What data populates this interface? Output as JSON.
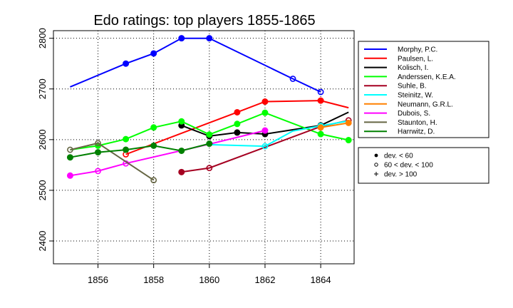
{
  "chart_data": {
    "type": "line",
    "title": "Edo ratings: top players 1855-1865",
    "xlabel": "",
    "ylabel": "",
    "xlim": [
      1854.4,
      1865.2
    ],
    "ylim": [
      2355,
      2815
    ],
    "xticks": [
      1856,
      1858,
      1860,
      1862,
      1864
    ],
    "yticks": [
      2400,
      2500,
      2600,
      2700,
      2800
    ],
    "xtick_labels": [
      "1856",
      "1858",
      "1860",
      "1862",
      "1864"
    ],
    "ytick_labels": [
      "2400",
      "2500",
      "2600",
      "2700",
      "2800"
    ],
    "grid": "dotted",
    "series": [
      {
        "name": "Morphy, P.C.",
        "color": "#0000ff",
        "points": [
          [
            1855,
            2704,
            ""
          ],
          [
            1857,
            2750,
            "filled"
          ],
          [
            1858,
            2770,
            "filled"
          ],
          [
            1859,
            2800,
            "filled"
          ],
          [
            1860,
            2800,
            "filled"
          ],
          [
            1863,
            2720,
            "open"
          ],
          [
            1864,
            2694,
            "open"
          ]
        ]
      },
      {
        "name": "Paulsen, L.",
        "color": "#ff0000",
        "points": [
          [
            1857,
            2571,
            "open"
          ],
          [
            1861,
            2654,
            "filled"
          ],
          [
            1862,
            2675,
            "filled"
          ],
          [
            1864,
            2677,
            "filled"
          ],
          [
            1865,
            2663,
            ""
          ]
        ]
      },
      {
        "name": "Kolisch, I.",
        "color": "#000000",
        "points": [
          [
            1859,
            2628,
            "filled"
          ],
          [
            1860,
            2607,
            "filled"
          ],
          [
            1861,
            2614,
            "filled"
          ],
          [
            1862,
            2611,
            "filled"
          ],
          [
            1864,
            2628,
            "filled"
          ],
          [
            1865,
            2654,
            ""
          ]
        ]
      },
      {
        "name": "Anderssen, K.E.A.",
        "color": "#00ff00",
        "points": [
          [
            1855,
            2580,
            ""
          ],
          [
            1856,
            2588,
            "filled"
          ],
          [
            1857,
            2601,
            "filled"
          ],
          [
            1858,
            2624,
            "filled"
          ],
          [
            1859,
            2636,
            "filled"
          ],
          [
            1860,
            2610,
            "filled"
          ],
          [
            1861,
            2631,
            "filled"
          ],
          [
            1862,
            2653,
            "filled"
          ],
          [
            1864,
            2611,
            "filled"
          ],
          [
            1865,
            2599,
            "filled"
          ]
        ]
      },
      {
        "name": "Suhle, B.",
        "color": "#a50021",
        "points": [
          [
            1859,
            2536,
            "filled"
          ],
          [
            1860,
            2544,
            "open"
          ],
          [
            1864,
            2626,
            ""
          ],
          [
            1865,
            2638,
            "open"
          ]
        ]
      },
      {
        "name": "Steinitz, W.",
        "color": "#00ffff",
        "points": [
          [
            1860,
            2590,
            ""
          ],
          [
            1862,
            2587,
            "open"
          ],
          [
            1863,
            2617,
            ""
          ],
          [
            1864,
            2627,
            "filled"
          ],
          [
            1865,
            2637,
            ""
          ]
        ]
      },
      {
        "name": "Neumann, G.R.L.",
        "color": "#ff8000",
        "points": [
          [
            1864,
            2624,
            "filled"
          ],
          [
            1865,
            2633,
            "filled"
          ]
        ]
      },
      {
        "name": "Dubois, S.",
        "color": "#ff00ff",
        "points": [
          [
            1855,
            2529,
            "filled"
          ],
          [
            1856,
            2538,
            "open"
          ],
          [
            1857,
            2553,
            "open"
          ],
          [
            1860,
            2591,
            ""
          ],
          [
            1862,
            2618,
            "filled"
          ]
        ]
      },
      {
        "name": "Staunton, H.",
        "color": "#666644",
        "points": [
          [
            1855,
            2580,
            "open"
          ],
          [
            1856,
            2593,
            "open"
          ],
          [
            1858,
            2520,
            "open"
          ]
        ]
      },
      {
        "name": "Harrwitz, D.",
        "color": "#008000",
        "points": [
          [
            1855,
            2565,
            "filled"
          ],
          [
            1856,
            2575,
            "filled"
          ],
          [
            1857,
            2580,
            "filled"
          ],
          [
            1858,
            2588,
            "filled"
          ],
          [
            1859,
            2578,
            "filled"
          ],
          [
            1860,
            2592,
            "filled"
          ]
        ]
      }
    ],
    "symbol_legend": [
      {
        "symbol": "filled",
        "label": "dev. < 60"
      },
      {
        "symbol": "open",
        "label": "60 < dev. < 100"
      },
      {
        "symbol": "plus",
        "label": "dev. > 100"
      }
    ],
    "legend_position": "right"
  }
}
